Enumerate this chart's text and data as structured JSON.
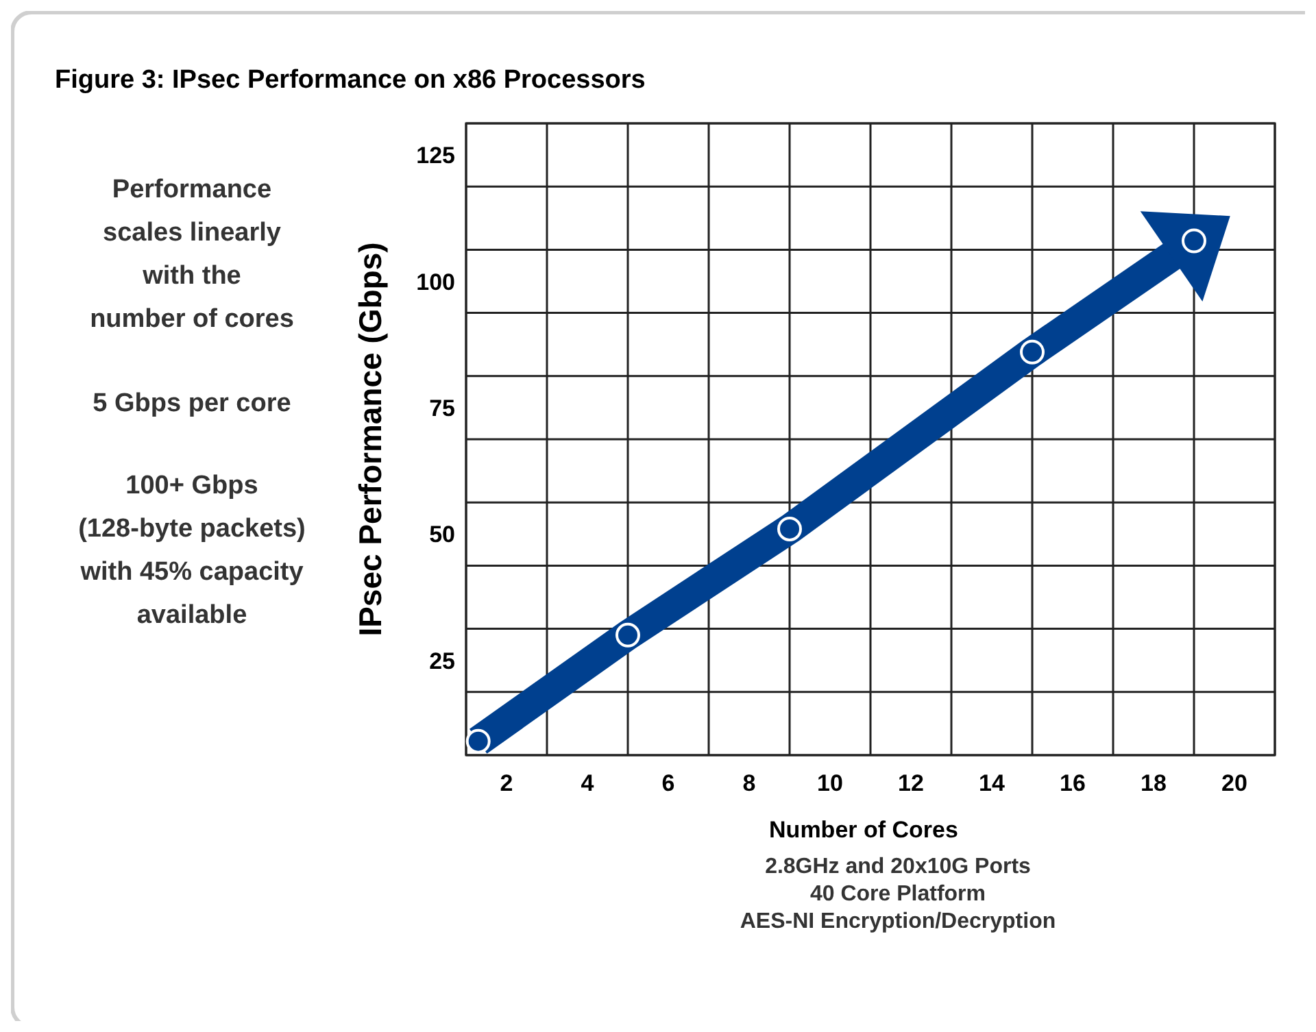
{
  "chart_data": {
    "type": "line",
    "title": "Figure 3: IPsec Performance on x86 Processors",
    "xlabel": "Number of Cores",
    "ylabel": "IPsec Performance (Gbps)",
    "annotations": [
      "Performance\nscales linearly\nwith the\nnumber of cores",
      "5 Gbps per core",
      "100+ Gbps\n(128-byte packets)\nwith 45% capacity\navailable",
      "2.8GHz and 20x10G Ports",
      "40 Core Platform",
      "AES-NI Encryption/Decryption"
    ],
    "x": [
      1.3,
      5,
      9,
      15,
      19
    ],
    "series": [
      {
        "color": "#00408f",
        "values": [
          9,
          30,
          51,
          86,
          108
        ]
      }
    ],
    "marker": "circle",
    "line_style": "solid",
    "grid": true,
    "xlim": [
      1,
      21
    ],
    "xticks": [
      {
        "value": 1,
        "label": null
      },
      2,
      {
        "value": 3,
        "label": null
      },
      4,
      {
        "value": 5,
        "label": null
      },
      6,
      {
        "value": 7,
        "label": null
      },
      8,
      {
        "value": 9,
        "label": null
      },
      10,
      {
        "value": 11,
        "label": null
      },
      12,
      {
        "value": 13,
        "label": null
      },
      14,
      {
        "value": 15,
        "label": null
      },
      16,
      {
        "value": 17,
        "label": null
      },
      18,
      {
        "value": 19,
        "label": null
      },
      20,
      {
        "value": 21,
        "label": null
      }
    ],
    "ylim": [
      6.25,
      131.25
    ],
    "yticks": [
      {
        "value": 6.25,
        "label": null
      },
      {
        "value": 18.75,
        "label": null
      },
      25,
      {
        "value": 31.25,
        "label": null
      },
      {
        "value": 43.75,
        "label": null
      },
      50,
      {
        "value": 56.25,
        "label": null
      },
      {
        "value": 68.75,
        "label": null
      },
      75,
      {
        "value": 81.25,
        "label": null
      },
      {
        "value": 93.75,
        "label": null
      },
      100,
      {
        "value": 106.25,
        "label": null
      },
      {
        "value": 118.75,
        "label": null
      },
      125,
      {
        "value": 131.25,
        "label": null
      }
    ]
  }
}
